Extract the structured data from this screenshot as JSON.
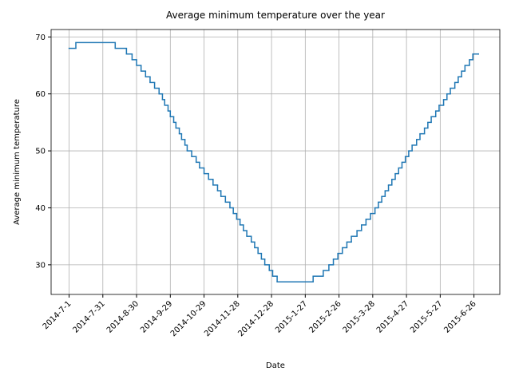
{
  "chart_data": {
    "type": "line",
    "drawstyle": "steps-post",
    "title": "Average minimum temperature over the year",
    "xlabel": "Date",
    "ylabel": "Average minimum temperature",
    "grid": true,
    "x": [
      "2014-7-1",
      "2014-7-7",
      "2014-8-11",
      "2014-8-21",
      "2014-8-26",
      "2014-8-30",
      "2014-9-3",
      "2014-9-7",
      "2014-9-11",
      "2014-9-15",
      "2014-9-19",
      "2014-9-22",
      "2014-9-24",
      "2014-9-27",
      "2014-9-29",
      "2014-10-2",
      "2014-10-4",
      "2014-10-7",
      "2014-10-9",
      "2014-10-12",
      "2014-10-14",
      "2014-10-18",
      "2014-10-22",
      "2014-10-25",
      "2014-10-29",
      "2014-11-2",
      "2014-11-6",
      "2014-11-10",
      "2014-11-13",
      "2014-11-17",
      "2014-11-21",
      "2014-11-24",
      "2014-11-27",
      "2014-11-30",
      "2014-12-3",
      "2014-12-6",
      "2014-12-10",
      "2014-12-13",
      "2014-12-16",
      "2014-12-19",
      "2014-12-22",
      "2014-12-26",
      "2014-12-29",
      "2015-1-2",
      "2015-2-3",
      "2015-2-12",
      "2015-2-17",
      "2015-2-21",
      "2015-2-25",
      "2015-3-1",
      "2015-3-5",
      "2015-3-9",
      "2015-3-14",
      "2015-3-18",
      "2015-3-22",
      "2015-3-26",
      "2015-3-30",
      "2015-4-2",
      "2015-4-5",
      "2015-4-8",
      "2015-4-11",
      "2015-4-14",
      "2015-4-17",
      "2015-4-20",
      "2015-4-23",
      "2015-4-26",
      "2015-4-29",
      "2015-5-2",
      "2015-5-6",
      "2015-5-9",
      "2015-5-13",
      "2015-5-16",
      "2015-5-19",
      "2015-5-23",
      "2015-5-26",
      "2015-5-30",
      "2015-6-2",
      "2015-6-5",
      "2015-6-9",
      "2015-6-12",
      "2015-6-15",
      "2015-6-18",
      "2015-6-22",
      "2015-6-25",
      "2015-6-30"
    ],
    "series": [
      {
        "color": "#1f77b4",
        "values": [
          68,
          69,
          68,
          67,
          66,
          65,
          64,
          63,
          62,
          61,
          60,
          59,
          58,
          57,
          56,
          55,
          54,
          53,
          52,
          51,
          50,
          49,
          48,
          47,
          46,
          45,
          44,
          43,
          42,
          41,
          40,
          39,
          38,
          37,
          36,
          35,
          34,
          33,
          32,
          31,
          30,
          29,
          28,
          27,
          28,
          29,
          30,
          31,
          32,
          33,
          34,
          35,
          36,
          37,
          38,
          39,
          40,
          41,
          42,
          43,
          44,
          45,
          46,
          47,
          48,
          49,
          50,
          51,
          52,
          53,
          54,
          55,
          56,
          57,
          58,
          59,
          60,
          61,
          62,
          63,
          64,
          65,
          66,
          67,
          67
        ]
      }
    ],
    "xlim": [
      "2014-6-15",
      "2015-7-19"
    ],
    "xticks": [
      "2014-7-1",
      "2014-7-31",
      "2014-8-30",
      "2014-9-29",
      "2014-10-29",
      "2014-11-28",
      "2014-12-28",
      "2015-1-27",
      "2015-2-26",
      "2015-3-28",
      "2015-4-27",
      "2015-5-27",
      "2015-6-26"
    ],
    "ylim": [
      24.8,
      71.3
    ],
    "yticks": [
      30,
      40,
      50,
      60,
      70
    ]
  }
}
